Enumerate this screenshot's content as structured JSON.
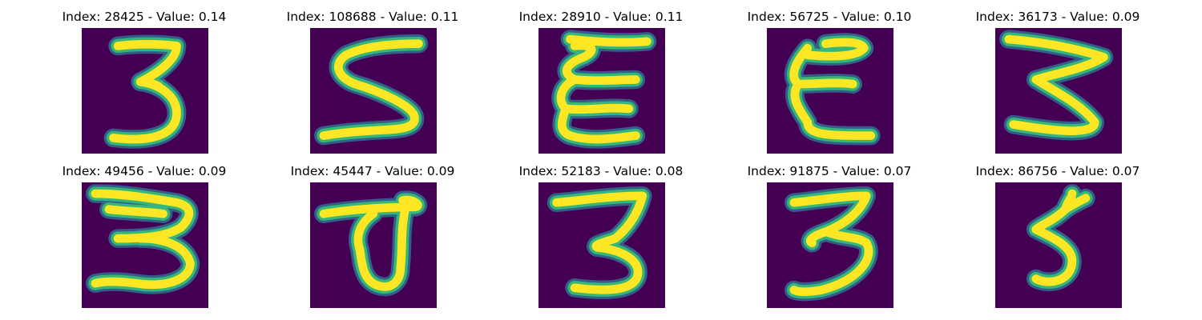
{
  "colors": {
    "background": "#440154",
    "stroke_outer": "#31688e",
    "stroke_mid": "#35b779",
    "stroke_core": "#fde725"
  },
  "panels": [
    {
      "title": "Index: 28425 - Value: 0.14",
      "digit": "3"
    },
    {
      "title": "Index: 108688 - Value: 0.11",
      "digit": "5"
    },
    {
      "title": "Index: 28910 - Value: 0.11",
      "digit": "3"
    },
    {
      "title": "Index: 56725 - Value: 0.10",
      "digit": "3"
    },
    {
      "title": "Index: 36173 - Value: 0.09",
      "digit": "3"
    },
    {
      "title": "Index: 49456 - Value: 0.09",
      "digit": "3"
    },
    {
      "title": "Index: 45447 - Value: 0.09",
      "digit": "0"
    },
    {
      "title": "Index: 52183 - Value: 0.08",
      "digit": "3"
    },
    {
      "title": "Index: 91875 - Value: 0.07",
      "digit": "3"
    },
    {
      "title": "Index: 86756 - Value: 0.07",
      "digit": "5"
    }
  ]
}
